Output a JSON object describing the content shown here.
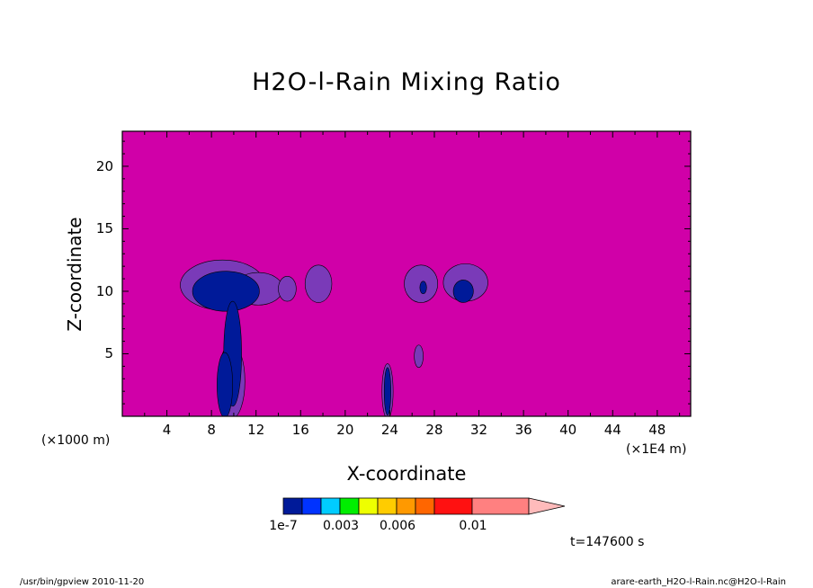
{
  "chart_data": {
    "type": "heatmap",
    "title": "H2O-l-Rain Mixing Ratio",
    "xlabel": "X-coordinate",
    "ylabel": "Z-coordinate",
    "x_unit_left": "(×1000 m)",
    "x_unit_right": "(×1E4 m)",
    "x_ticks": [
      4,
      8,
      12,
      16,
      20,
      24,
      28,
      32,
      36,
      40,
      44,
      48
    ],
    "y_ticks": [
      5,
      10,
      15,
      20
    ],
    "xlim": [
      0,
      51
    ],
    "ylim": [
      0,
      22.8
    ],
    "background_color": "#d000a8",
    "colorbar": {
      "colors": [
        "#001a99",
        "#0033ff",
        "#00ccff",
        "#00ee00",
        "#eeff00",
        "#ffcc00",
        "#ff9900",
        "#ff6600",
        "#ff1111",
        "#ff8080",
        "#ffbbbb"
      ],
      "labels": [
        "1e-7",
        "0.003",
        "0.006",
        "0.01"
      ],
      "extend": "max"
    },
    "contours": [
      {
        "level": "low",
        "color": "#7a3ab8",
        "cx": 9.0,
        "cy": 10.5,
        "rx": 3.8,
        "ry": 2.0
      },
      {
        "level": "low",
        "color": "#7a3ab8",
        "cx": 12.2,
        "cy": 10.2,
        "rx": 2.2,
        "ry": 1.3
      },
      {
        "level": "low",
        "color": "#7a3ab8",
        "cx": 14.8,
        "cy": 10.2,
        "rx": 0.8,
        "ry": 1.0
      },
      {
        "level": "low",
        "color": "#7a3ab8",
        "cx": 17.6,
        "cy": 10.6,
        "rx": 1.2,
        "ry": 1.5
      },
      {
        "level": "low",
        "color": "#7a3ab8",
        "cx": 26.8,
        "cy": 10.6,
        "rx": 1.5,
        "ry": 1.5
      },
      {
        "level": "low",
        "color": "#7a3ab8",
        "cx": 30.8,
        "cy": 10.7,
        "rx": 2.0,
        "ry": 1.5
      },
      {
        "level": "low",
        "color": "#7a3ab8",
        "cx": 26.6,
        "cy": 4.8,
        "rx": 0.4,
        "ry": 0.9
      },
      {
        "level": "low",
        "color": "#7a3ab8",
        "cx": 9.8,
        "cy": 2.8,
        "rx": 1.2,
        "ry": 3.0
      },
      {
        "level": "low",
        "color": "#7a3ab8",
        "cx": 23.8,
        "cy": 2.0,
        "rx": 0.5,
        "ry": 2.2
      },
      {
        "level": "high",
        "color": "#001a99",
        "cx": 9.3,
        "cy": 10.0,
        "rx": 3.0,
        "ry": 1.6
      },
      {
        "level": "high",
        "color": "#001a99",
        "cx": 9.9,
        "cy": 5.0,
        "rx": 0.8,
        "ry": 4.2
      },
      {
        "level": "high",
        "color": "#001a99",
        "cx": 9.2,
        "cy": 2.5,
        "rx": 0.7,
        "ry": 2.6
      },
      {
        "level": "high",
        "color": "#001a99",
        "cx": 23.8,
        "cy": 2.0,
        "rx": 0.3,
        "ry": 1.9
      },
      {
        "level": "high",
        "color": "#001a99",
        "cx": 30.6,
        "cy": 10.0,
        "rx": 0.9,
        "ry": 0.9
      },
      {
        "level": "high",
        "color": "#001a99",
        "cx": 27.0,
        "cy": 10.3,
        "rx": 0.3,
        "ry": 0.5
      }
    ]
  },
  "annotation": {
    "time": "t=147600 s"
  },
  "footer": {
    "left": "/usr/bin/gpview   2010-11-20",
    "right": "arare-earth_H2O-l-Rain.nc@H2O-l-Rain"
  }
}
